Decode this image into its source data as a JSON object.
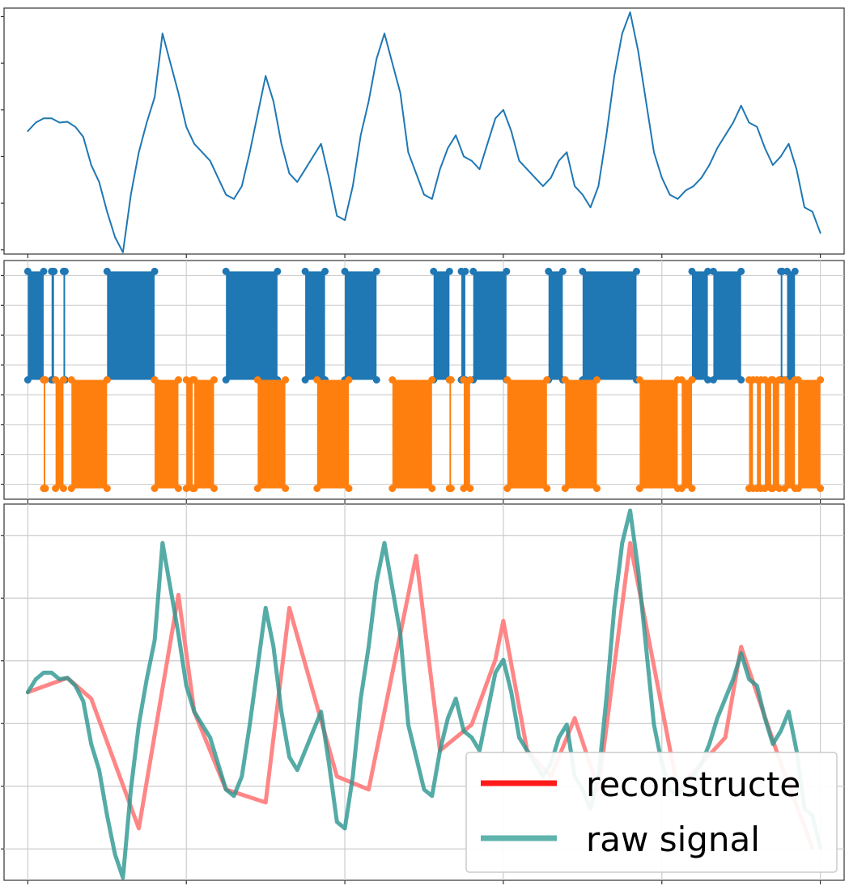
{
  "chart_data": [
    {
      "type": "line",
      "panel": "top",
      "series": [
        {
          "color": "#1f77b4",
          "x": [
            0,
            0.01,
            0.02,
            0.03,
            0.04,
            0.05,
            0.06,
            0.07,
            0.08,
            0.09,
            0.1,
            0.11,
            0.12,
            0.13,
            0.14,
            0.15,
            0.16,
            0.17,
            0.18,
            0.19,
            0.2,
            0.21,
            0.22,
            0.23,
            0.24,
            0.25,
            0.26,
            0.27,
            0.28,
            0.29,
            0.3,
            0.31,
            0.32,
            0.33,
            0.34,
            0.35,
            0.36,
            0.37,
            0.38,
            0.39,
            0.4,
            0.41,
            0.42,
            0.43,
            0.44,
            0.45,
            0.46,
            0.47,
            0.48,
            0.49,
            0.5,
            0.51,
            0.52,
            0.53,
            0.54,
            0.55,
            0.56,
            0.57,
            0.58,
            0.59,
            0.6,
            0.61,
            0.62,
            0.63,
            0.64,
            0.65,
            0.66,
            0.67,
            0.68,
            0.69,
            0.7,
            0.71,
            0.72,
            0.73,
            0.74,
            0.75,
            0.76,
            0.77,
            0.78,
            0.79,
            0.8,
            0.81,
            0.82,
            0.83,
            0.84,
            0.85,
            0.86,
            0.87,
            0.88,
            0.89,
            0.9,
            0.91,
            0.92,
            0.93,
            0.94,
            0.95,
            0.96,
            0.97,
            0.98,
            0.99,
            1.0
          ],
          "y": [
            0.45,
            0.55,
            0.6,
            0.6,
            0.55,
            0.56,
            0.5,
            0.38,
            0.05,
            -0.15,
            -0.5,
            -0.8,
            -0.98,
            -0.3,
            0.2,
            0.55,
            0.85,
            1.6,
            1.25,
            0.9,
            0.5,
            0.3,
            0.2,
            0.1,
            -0.1,
            -0.3,
            -0.35,
            -0.2,
            0.2,
            0.65,
            1.1,
            0.8,
            0.3,
            -0.05,
            -0.15,
            0.0,
            0.15,
            0.3,
            -0.1,
            -0.55,
            -0.6,
            -0.2,
            0.4,
            0.8,
            1.3,
            1.6,
            1.25,
            0.9,
            0.2,
            -0.05,
            -0.3,
            -0.35,
            0.0,
            0.25,
            0.4,
            0.15,
            0.1,
            0.0,
            0.3,
            0.6,
            0.7,
            0.45,
            0.1,
            0.0,
            -0.1,
            -0.2,
            -0.1,
            0.1,
            0.2,
            -0.2,
            -0.3,
            -0.45,
            -0.2,
            0.4,
            1.1,
            1.6,
            1.85,
            1.4,
            0.8,
            0.2,
            -0.1,
            -0.3,
            -0.35,
            -0.25,
            -0.2,
            -0.1,
            0.05,
            0.25,
            0.4,
            0.55,
            0.75,
            0.55,
            0.5,
            0.25,
            0.05,
            0.15,
            0.3,
            0.0,
            -0.45,
            -0.5,
            -0.75
          ]
        }
      ],
      "ylim": [
        -1.0,
        1.9
      ],
      "xlim": [
        -0.03,
        1.03
      ],
      "grid": false
    },
    {
      "type": "scatter",
      "panel": "middle",
      "series": [
        {
          "color": "#1f77b4",
          "level": 1,
          "intervals": [
            [
              0.0,
              0.02
            ],
            [
              0.03,
              0.033
            ],
            [
              0.045,
              0.047
            ],
            [
              0.1,
              0.16
            ],
            [
              0.25,
              0.315
            ],
            [
              0.35,
              0.375
            ],
            [
              0.4,
              0.44
            ],
            [
              0.512,
              0.532
            ],
            [
              0.547,
              0.552
            ],
            [
              0.562,
              0.604
            ],
            [
              0.657,
              0.675
            ],
            [
              0.7,
              0.768
            ],
            [
              0.838,
              0.858
            ],
            [
              0.865,
              0.9
            ],
            [
              0.95,
              0.952
            ],
            [
              0.958,
              0.968
            ]
          ]
        },
        {
          "color": "#ff7f0e",
          "level": -1,
          "intervals": [
            [
              0.02,
              0.022
            ],
            [
              0.035,
              0.045
            ],
            [
              0.055,
              0.1
            ],
            [
              0.16,
              0.19
            ],
            [
              0.2,
              0.208
            ],
            [
              0.21,
              0.235
            ],
            [
              0.29,
              0.325
            ],
            [
              0.365,
              0.405
            ],
            [
              0.46,
              0.51
            ],
            [
              0.532,
              0.534
            ],
            [
              0.55,
              0.558
            ],
            [
              0.605,
              0.655
            ],
            [
              0.678,
              0.718
            ],
            [
              0.772,
              0.82
            ],
            [
              0.825,
              0.838
            ],
            [
              0.91,
              0.915
            ],
            [
              0.92,
              0.925
            ],
            [
              0.93,
              0.938
            ],
            [
              0.94,
              0.948
            ],
            [
              0.955,
              0.968
            ],
            [
              0.972,
              1.0
            ]
          ]
        }
      ],
      "ylim": [
        -1.1,
        1.1
      ],
      "xlim": [
        -0.03,
        1.03
      ],
      "grid": true
    },
    {
      "type": "line",
      "panel": "bottom",
      "legend": [
        {
          "label": "reconstructe",
          "color": "#ff1a1a"
        },
        {
          "label": "raw signal",
          "color": "#5fb3ad"
        }
      ],
      "legend_position": "lower-right",
      "series": [
        {
          "name": "reconstructe",
          "color": "#ff7f7f",
          "x": [
            0,
            0.05,
            0.08,
            0.14,
            0.19,
            0.21,
            0.25,
            0.3,
            0.33,
            0.39,
            0.43,
            0.49,
            0.52,
            0.56,
            0.59,
            0.6,
            0.63,
            0.66,
            0.69,
            0.72,
            0.76,
            0.82,
            0.88,
            0.9,
            0.95,
            0.99
          ],
          "y": [
            0.45,
            0.56,
            0.4,
            -0.6,
            1.2,
            0.3,
            -0.3,
            -0.4,
            1.1,
            -0.2,
            -0.3,
            1.5,
            0.0,
            0.2,
            0.7,
            1.0,
            0.0,
            -0.2,
            0.25,
            -0.3,
            1.6,
            -0.3,
            0.1,
            0.8,
            -0.1,
            -0.75
          ]
        },
        {
          "name": "raw signal",
          "color": "#2a9690",
          "x": [
            0,
            0.01,
            0.02,
            0.03,
            0.04,
            0.05,
            0.06,
            0.07,
            0.08,
            0.09,
            0.1,
            0.11,
            0.12,
            0.13,
            0.14,
            0.15,
            0.16,
            0.17,
            0.18,
            0.19,
            0.2,
            0.21,
            0.22,
            0.23,
            0.24,
            0.25,
            0.26,
            0.27,
            0.28,
            0.29,
            0.3,
            0.31,
            0.32,
            0.33,
            0.34,
            0.35,
            0.36,
            0.37,
            0.38,
            0.39,
            0.4,
            0.41,
            0.42,
            0.43,
            0.44,
            0.45,
            0.46,
            0.47,
            0.48,
            0.49,
            0.5,
            0.51,
            0.52,
            0.53,
            0.54,
            0.55,
            0.56,
            0.57,
            0.58,
            0.59,
            0.6,
            0.61,
            0.62,
            0.63,
            0.64,
            0.65,
            0.66,
            0.67,
            0.68,
            0.69,
            0.7,
            0.71,
            0.72,
            0.73,
            0.74,
            0.75,
            0.76,
            0.77,
            0.78,
            0.79,
            0.8,
            0.81,
            0.82,
            0.83,
            0.84,
            0.85,
            0.86,
            0.87,
            0.88,
            0.89,
            0.9,
            0.91,
            0.92,
            0.93,
            0.94,
            0.95,
            0.96,
            0.97,
            0.98,
            0.99,
            1.0
          ],
          "y": [
            0.45,
            0.55,
            0.6,
            0.6,
            0.55,
            0.56,
            0.5,
            0.38,
            0.05,
            -0.15,
            -0.5,
            -0.8,
            -0.98,
            -0.3,
            0.2,
            0.55,
            0.85,
            1.6,
            1.25,
            0.9,
            0.5,
            0.3,
            0.2,
            0.1,
            -0.1,
            -0.3,
            -0.35,
            -0.2,
            0.2,
            0.65,
            1.1,
            0.8,
            0.3,
            -0.05,
            -0.15,
            0.0,
            0.15,
            0.3,
            -0.1,
            -0.55,
            -0.6,
            -0.2,
            0.4,
            0.8,
            1.3,
            1.6,
            1.25,
            0.9,
            0.2,
            -0.05,
            -0.3,
            -0.35,
            0.0,
            0.25,
            0.4,
            0.15,
            0.1,
            0.0,
            0.3,
            0.6,
            0.7,
            0.45,
            0.1,
            0.0,
            -0.1,
            -0.2,
            -0.1,
            0.1,
            0.2,
            -0.2,
            -0.3,
            -0.45,
            -0.2,
            0.4,
            1.1,
            1.6,
            1.85,
            1.4,
            0.8,
            0.2,
            -0.1,
            -0.3,
            -0.35,
            -0.25,
            -0.2,
            -0.1,
            0.05,
            0.25,
            0.4,
            0.55,
            0.75,
            0.55,
            0.5,
            0.25,
            0.05,
            0.15,
            0.3,
            0.0,
            -0.45,
            -0.5,
            -0.75
          ]
        }
      ],
      "ylim": [
        -1.0,
        1.9
      ],
      "xlim": [
        -0.03,
        1.03
      ],
      "grid": true
    }
  ]
}
